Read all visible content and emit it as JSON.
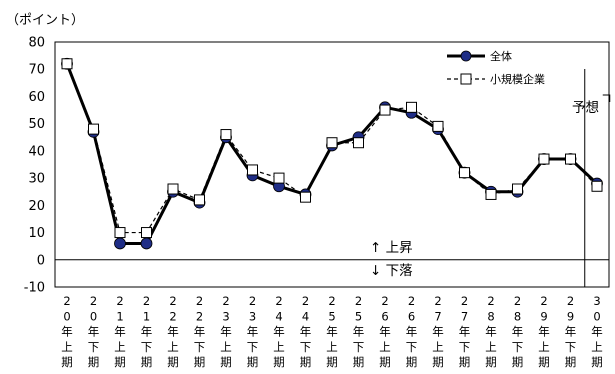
{
  "chart_data": {
    "type": "line",
    "unit_label": "（ポイント）",
    "ylim": [
      -10,
      80
    ],
    "yticks": [
      80,
      70,
      60,
      50,
      40,
      30,
      20,
      10,
      0,
      -10
    ],
    "categories": [
      "20年上期",
      "20年下期",
      "21年上期",
      "21年下期",
      "22年上期",
      "22年下期",
      "23年上期",
      "23年下期",
      "24年上期",
      "24年下期",
      "25年上期",
      "25年下期",
      "26年上期",
      "26年下期",
      "27年上期",
      "27年下期",
      "28年上期",
      "28年下期",
      "29年上期",
      "29年下期",
      "30年上期"
    ],
    "series": [
      {
        "name": "全体",
        "color": "#000000",
        "marker": "filled-circle",
        "marker_color": "#1f2d86",
        "values": [
          72,
          47,
          6,
          6,
          25,
          21,
          45,
          31,
          27,
          24,
          42,
          45,
          56,
          54,
          48,
          32,
          25,
          25,
          37,
          37,
          28
        ]
      },
      {
        "name": "小規模企業",
        "color": "#000000",
        "marker": "hollow-square",
        "dashed": true,
        "values": [
          72,
          48,
          10,
          10,
          26,
          22,
          46,
          33,
          30,
          23,
          43,
          43,
          55,
          56,
          49,
          32,
          24,
          26,
          37,
          37,
          27
        ]
      }
    ],
    "annotations": {
      "up": "↑ 上昇",
      "down": "↓ 下落",
      "forecast": "予想"
    }
  }
}
